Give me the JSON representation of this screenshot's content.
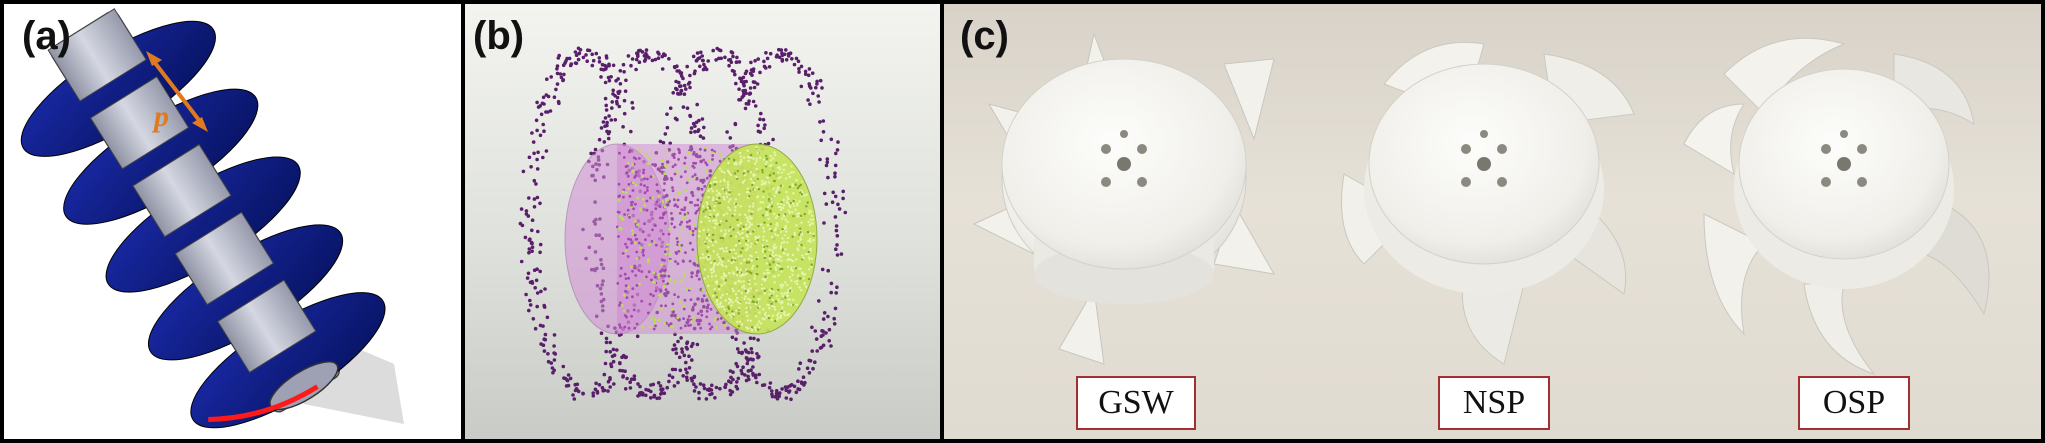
{
  "panels": {
    "a": {
      "label": "(a)",
      "pitch_symbol": "p"
    },
    "b": {
      "label": "(b)"
    },
    "c": {
      "label": "(c)",
      "samples": [
        "GSW",
        "NSP",
        "OSP"
      ]
    }
  },
  "colors": {
    "blade_blue": "#0a1a8c",
    "shaft_grey": "#b9bcc8",
    "pitch_arrow": "#e07a1f",
    "edge_red": "#ff1a1a",
    "particle_purple": "#5a1f6a",
    "particle_green": "#b9e050",
    "tag_border": "#a03030"
  }
}
